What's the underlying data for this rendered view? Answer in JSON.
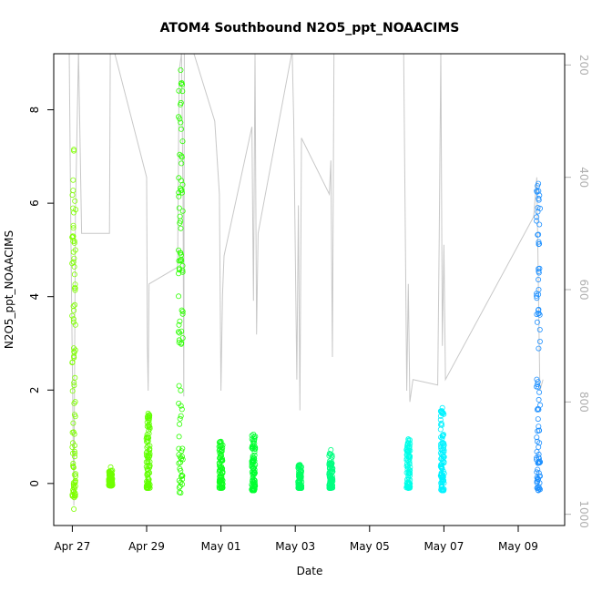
{
  "chart_data": {
    "type": "scatter",
    "title": "ATOM4 Southbound N2O5_ppt_NOAACIMS",
    "xlabel": "Date",
    "ylabel": "N2O5_ppt_NOAACIMS",
    "xlim": [
      "2018-04-26T12:00",
      "2018-05-10T06:00"
    ],
    "ylim": [
      -0.9,
      9.2
    ],
    "y_ticks": [
      0,
      2,
      4,
      6,
      8
    ],
    "x_ticks": [
      {
        "date": "2018-04-27",
        "label": "Apr 27"
      },
      {
        "date": "2018-04-29",
        "label": "Apr 29"
      },
      {
        "date": "2018-05-01",
        "label": "May 01"
      },
      {
        "date": "2018-05-03",
        "label": "May 03"
      },
      {
        "date": "2018-05-05",
        "label": "May 05"
      },
      {
        "date": "2018-05-07",
        "label": "May 07"
      },
      {
        "date": "2018-05-09",
        "label": "May 09"
      }
    ],
    "secondary_axis": {
      "position": "right",
      "reversed": true,
      "range": [
        180,
        1020
      ],
      "ticks": [
        200,
        400,
        600,
        800,
        1000
      ],
      "color": "#b0b0b0"
    },
    "grid": false,
    "series": [
      {
        "date": "2018-04-27T01:00",
        "spread": 0.03,
        "min": -0.55,
        "max": 7.15,
        "bulk": [
          -0.3,
          0.9
        ],
        "tail": 0.6,
        "color": "#7fff00"
      },
      {
        "date": "2018-04-28T00:45",
        "spread": 0.02,
        "min": -0.05,
        "max": 0.35,
        "bulk": [
          -0.05,
          0.3
        ],
        "tail": 0.0,
        "color": "#70ff00"
      },
      {
        "date": "2018-04-29T01:00",
        "spread": 0.03,
        "min": -0.1,
        "max": 1.5,
        "bulk": [
          -0.1,
          1.2
        ],
        "tail": 0.2,
        "color": "#60ff00"
      },
      {
        "date": "2018-04-29T22:00",
        "spread": 0.12,
        "min": -0.2,
        "max": 8.85,
        "bulk": [
          -0.2,
          1.6
        ],
        "tail": 0.7,
        "color": "#2cff00"
      },
      {
        "date": "2018-05-01T00:00",
        "spread": 0.03,
        "min": -0.1,
        "max": 0.9,
        "bulk": [
          -0.1,
          0.6
        ],
        "tail": 0.2,
        "color": "#10ff20"
      },
      {
        "date": "2018-05-01T21:00",
        "spread": 0.05,
        "min": -0.15,
        "max": 1.05,
        "bulk": [
          -0.15,
          0.6
        ],
        "tail": 0.25,
        "color": "#00ff30"
      },
      {
        "date": "2018-05-03T03:00",
        "spread": 0.04,
        "min": -0.1,
        "max": 0.4,
        "bulk": [
          -0.1,
          0.3
        ],
        "tail": 0.1,
        "color": "#00ff60"
      },
      {
        "date": "2018-05-03T23:00",
        "spread": 0.03,
        "min": -0.1,
        "max": 0.72,
        "bulk": [
          -0.1,
          0.45
        ],
        "tail": 0.15,
        "color": "#00ff80"
      },
      {
        "date": "2018-05-06T01:00",
        "spread": 0.08,
        "min": -0.1,
        "max": 0.95,
        "bulk": [
          -0.1,
          0.75
        ],
        "tail": 0.15,
        "color": "#00ffe8"
      },
      {
        "date": "2018-05-06T23:00",
        "spread": 0.08,
        "min": -0.15,
        "max": 1.62,
        "bulk": [
          -0.15,
          0.9
        ],
        "tail": 0.2,
        "color": "#00f2ff"
      },
      {
        "date": "2018-05-09T13:00",
        "spread": 0.06,
        "min": -0.15,
        "max": 6.42,
        "bulk": [
          -0.15,
          0.6
        ],
        "tail": 0.6,
        "color": "#1e90ff"
      }
    ],
    "secondary_line": {
      "color": "#c8c8c8",
      "points": [
        [
          "2018-04-26T22:00",
          175
        ],
        [
          "2018-04-26T23:00",
          480
        ],
        [
          "2018-04-27T01:00",
          985
        ],
        [
          "2018-04-27T02:00",
          470
        ],
        [
          "2018-04-27T04:00",
          175
        ],
        [
          "2018-04-27T06:00",
          500
        ],
        [
          "2018-04-28T00:00",
          500
        ],
        [
          "2018-04-28T00:30",
          175
        ],
        [
          "2018-04-28T03:00",
          175
        ],
        [
          "2018-04-29T00:00",
          400
        ],
        [
          "2018-04-29T00:30",
          700
        ],
        [
          "2018-04-29T01:00",
          780
        ],
        [
          "2018-04-29T01:30",
          590
        ],
        [
          "2018-04-29T20:00",
          560
        ],
        [
          "2018-04-29T21:00",
          210
        ],
        [
          "2018-04-29T22:30",
          180
        ],
        [
          "2018-04-29T23:30",
          440
        ],
        [
          "2018-04-30T00:00",
          790
        ],
        [
          "2018-04-30T00:20",
          175
        ],
        [
          "2018-04-30T03:00",
          175
        ],
        [
          "2018-04-30T06:00",
          175
        ],
        [
          "2018-04-30T20:00",
          300
        ],
        [
          "2018-04-30T23:00",
          430
        ],
        [
          "2018-05-01T00:00",
          780
        ],
        [
          "2018-05-01T01:00",
          610
        ],
        [
          "2018-05-01T02:00",
          540
        ],
        [
          "2018-05-01T20:00",
          310
        ],
        [
          "2018-05-01T21:00",
          620
        ],
        [
          "2018-05-01T22:00",
          180
        ],
        [
          "2018-05-01T23:00",
          680
        ],
        [
          "2018-05-02T00:00",
          500
        ],
        [
          "2018-05-02T02:00",
          470
        ],
        [
          "2018-05-02T22:00",
          175
        ],
        [
          "2018-05-02T23:00",
          300
        ],
        [
          "2018-05-03T01:00",
          760
        ],
        [
          "2018-05-03T02:00",
          450
        ],
        [
          "2018-05-03T03:00",
          815
        ],
        [
          "2018-05-03T04:00",
          330
        ],
        [
          "2018-05-03T22:00",
          430
        ],
        [
          "2018-05-03T23:00",
          370
        ],
        [
          "2018-05-04T00:00",
          720
        ],
        [
          "2018-05-04T01:00",
          175
        ],
        [
          "2018-05-04T03:00",
          175
        ],
        [
          "2018-05-05T22:00",
          175
        ],
        [
          "2018-05-06T00:00",
          780
        ],
        [
          "2018-05-06T01:00",
          590
        ],
        [
          "2018-05-06T02:00",
          800
        ],
        [
          "2018-05-06T04:00",
          760
        ],
        [
          "2018-05-06T20:00",
          770
        ],
        [
          "2018-05-06T21:00",
          500
        ],
        [
          "2018-05-06T22:00",
          175
        ],
        [
          "2018-05-06T23:00",
          700
        ],
        [
          "2018-05-07T00:00",
          520
        ],
        [
          "2018-05-07T01:00",
          760
        ],
        [
          "2018-05-09T10:00",
          470
        ],
        [
          "2018-05-09T12:00",
          400
        ],
        [
          "2018-05-09T14:00",
          780
        ],
        [
          "2018-05-09T16:00",
          760
        ]
      ]
    }
  }
}
